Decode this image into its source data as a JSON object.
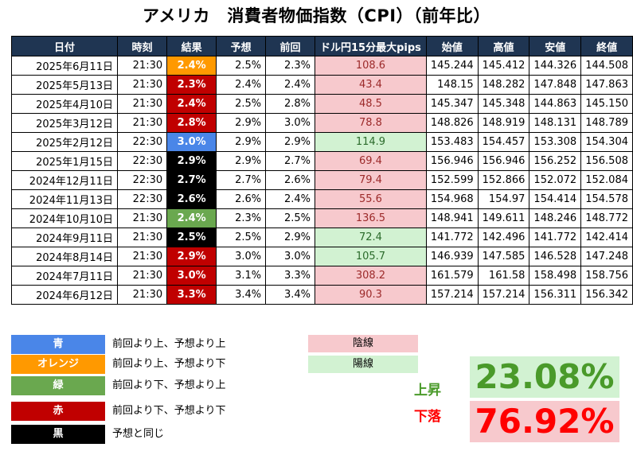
{
  "title": "アメリカ　消費者物価指数（CPI）（前年比）",
  "table": {
    "headers": [
      "日付",
      "時刻",
      "結果",
      "予想",
      "前回",
      "ドル円15分最大pips",
      "始値",
      "高値",
      "安値",
      "終値"
    ],
    "rows": [
      {
        "date": "2025年6月11日",
        "time": "21:30",
        "result": "2.4%",
        "result_color": "orange",
        "forecast": "2.5%",
        "previous": "2.3%",
        "pips": "108.6",
        "pips_type": "bear",
        "open": "145.244",
        "high": "145.412",
        "low": "144.326",
        "close": "144.508"
      },
      {
        "date": "2025年5月13日",
        "time": "21:30",
        "result": "2.3%",
        "result_color": "red",
        "forecast": "2.4%",
        "previous": "2.4%",
        "pips": "43.4",
        "pips_type": "bear",
        "open": "148.15",
        "high": "148.282",
        "low": "147.848",
        "close": "147.863"
      },
      {
        "date": "2025年4月10日",
        "time": "21:30",
        "result": "2.4%",
        "result_color": "red",
        "forecast": "2.5%",
        "previous": "2.8%",
        "pips": "48.5",
        "pips_type": "bear",
        "open": "145.347",
        "high": "145.348",
        "low": "144.863",
        "close": "145.150"
      },
      {
        "date": "2025年3月12日",
        "time": "21:30",
        "result": "2.8%",
        "result_color": "red",
        "forecast": "2.9%",
        "previous": "3.0%",
        "pips": "78.8",
        "pips_type": "bear",
        "open": "148.826",
        "high": "148.919",
        "low": "148.131",
        "close": "148.789"
      },
      {
        "date": "2025年2月12日",
        "time": "22:30",
        "result": "3.0%",
        "result_color": "blue",
        "forecast": "2.9%",
        "previous": "2.9%",
        "pips": "114.9",
        "pips_type": "bull",
        "open": "153.483",
        "high": "154.457",
        "low": "153.308",
        "close": "154.304"
      },
      {
        "date": "2025年1月15日",
        "time": "22:30",
        "result": "2.9%",
        "result_color": "black",
        "forecast": "2.9%",
        "previous": "2.7%",
        "pips": "69.4",
        "pips_type": "bear",
        "open": "156.946",
        "high": "156.946",
        "low": "156.252",
        "close": "156.508"
      },
      {
        "date": "2024年12月11日",
        "time": "22:30",
        "result": "2.7%",
        "result_color": "black",
        "forecast": "2.7%",
        "previous": "2.6%",
        "pips": "79.4",
        "pips_type": "bear",
        "open": "152.599",
        "high": "152.866",
        "low": "152.072",
        "close": "152.084"
      },
      {
        "date": "2024年11月13日",
        "time": "22:30",
        "result": "2.6%",
        "result_color": "black",
        "forecast": "2.6%",
        "previous": "2.4%",
        "pips": "55.6",
        "pips_type": "bear",
        "open": "154.968",
        "high": "154.97",
        "low": "154.414",
        "close": "154.578"
      },
      {
        "date": "2024年10月10日",
        "time": "21:30",
        "result": "2.4%",
        "result_color": "green",
        "forecast": "2.3%",
        "previous": "2.5%",
        "pips": "136.5",
        "pips_type": "bear",
        "open": "148.941",
        "high": "149.611",
        "low": "148.246",
        "close": "148.772"
      },
      {
        "date": "2024年9月11日",
        "time": "21:30",
        "result": "2.5%",
        "result_color": "black",
        "forecast": "2.5%",
        "previous": "2.9%",
        "pips": "72.4",
        "pips_type": "bull",
        "open": "141.772",
        "high": "142.496",
        "low": "141.772",
        "close": "142.414"
      },
      {
        "date": "2024年8月14日",
        "time": "21:30",
        "result": "2.9%",
        "result_color": "red",
        "forecast": "3.0%",
        "previous": "3.0%",
        "pips": "105.7",
        "pips_type": "bull",
        "open": "146.939",
        "high": "147.585",
        "low": "146.528",
        "close": "147.248"
      },
      {
        "date": "2024年7月11日",
        "time": "21:30",
        "result": "3.0%",
        "result_color": "red",
        "forecast": "3.1%",
        "previous": "3.3%",
        "pips": "308.2",
        "pips_type": "bear",
        "open": "161.579",
        "high": "161.58",
        "low": "158.498",
        "close": "158.756"
      },
      {
        "date": "2024年6月12日",
        "time": "21:30",
        "result": "3.3%",
        "result_color": "red",
        "forecast": "3.4%",
        "previous": "3.4%",
        "pips": "90.3",
        "pips_type": "bear",
        "open": "157.214",
        "high": "157.214",
        "low": "156.311",
        "close": "156.342"
      }
    ]
  },
  "legend": [
    {
      "label": "青",
      "color": "#4a86e8",
      "desc": "前回より上、予想より上"
    },
    {
      "label": "オレンジ",
      "color": "#ff9900",
      "desc": "前回より上、予想より下"
    },
    {
      "label": "緑",
      "color": "#6aa84f",
      "desc": "前回より下、予想より上"
    },
    {
      "label": "赤",
      "color": "#c00000",
      "desc": "前回より下、予想より下"
    },
    {
      "label": "黒",
      "color": "#000000",
      "desc": "予想と同じ"
    }
  ],
  "candles": {
    "bear_label": "陰線",
    "bear_color": "#f7c9cd",
    "bull_label": "陽線",
    "bull_color": "#d2f2d2"
  },
  "stats": {
    "up_label": "上昇",
    "up_value": "23.08%",
    "up_color": "#4a9a2a",
    "up_bg": "#d2f2d2",
    "down_label": "下落",
    "down_value": "76.92%",
    "down_color": "#ff0000",
    "down_bg": "#f7c9cd"
  }
}
